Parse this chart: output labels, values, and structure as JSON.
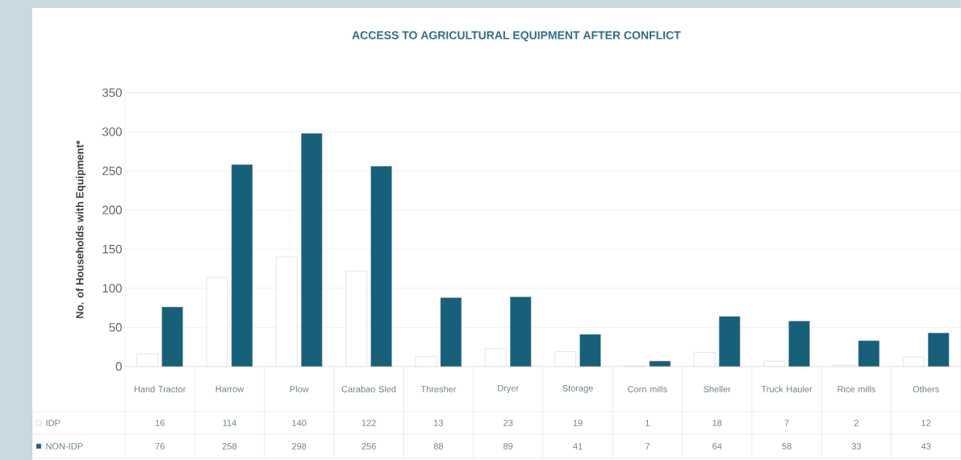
{
  "chart_data": {
    "type": "bar",
    "title": "ACCESS TO AGRICULTURAL EQUIPMENT AFTER CONFLICT",
    "ylabel": "No. of Households with Equipment*",
    "categories": [
      "Hand Tractor",
      "Harrow",
      "Plow",
      "Carabao Sled",
      "Thresher",
      "Dryer",
      "Storage",
      "Corn mills",
      "Sheller",
      "Truck Hauler",
      "Rice mills",
      "Others"
    ],
    "series": [
      {
        "name": "IDP",
        "color": "#ffffff",
        "values": [
          16,
          114,
          140,
          122,
          13,
          23,
          19,
          1,
          18,
          7,
          2,
          12
        ]
      },
      {
        "name": "NON-IDP",
        "color": "#17607a",
        "values": [
          76,
          258,
          298,
          256,
          88,
          89,
          41,
          7,
          64,
          58,
          33,
          43
        ]
      }
    ],
    "ylim": [
      0,
      350
    ],
    "yticks": [
      0,
      50,
      100,
      150,
      200,
      250,
      300,
      350
    ],
    "grid": "y",
    "legend": "bottom left",
    "data_labels": true
  }
}
